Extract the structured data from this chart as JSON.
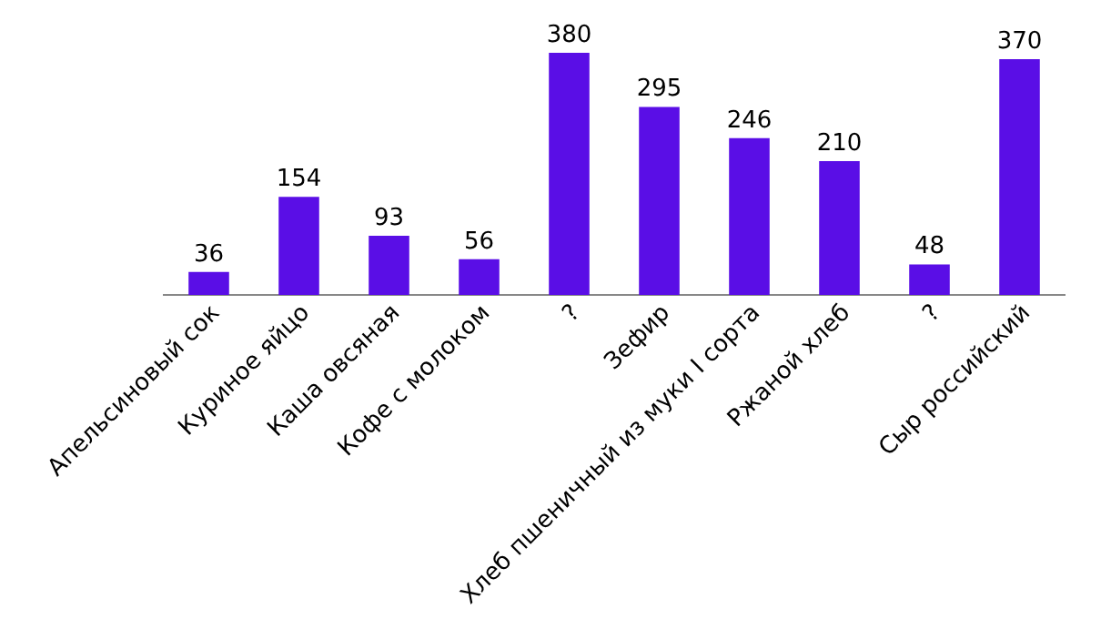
{
  "chart_data": {
    "type": "bar",
    "categories": [
      "Апельсиновый сок",
      "Куриное яйцо",
      "Каша овсяная",
      "Кофе с молоком",
      "?",
      "Зефир",
      "Хлеб пшеничный из муки I сорта",
      "Ржаной хлеб",
      "?",
      "Сыр российский"
    ],
    "values": [
      36,
      154,
      93,
      56,
      380,
      295,
      246,
      210,
      48,
      370
    ],
    "color": "#5a0ee6",
    "data_labels": true,
    "grid": false,
    "legend": false,
    "tick_labels": "x"
  }
}
